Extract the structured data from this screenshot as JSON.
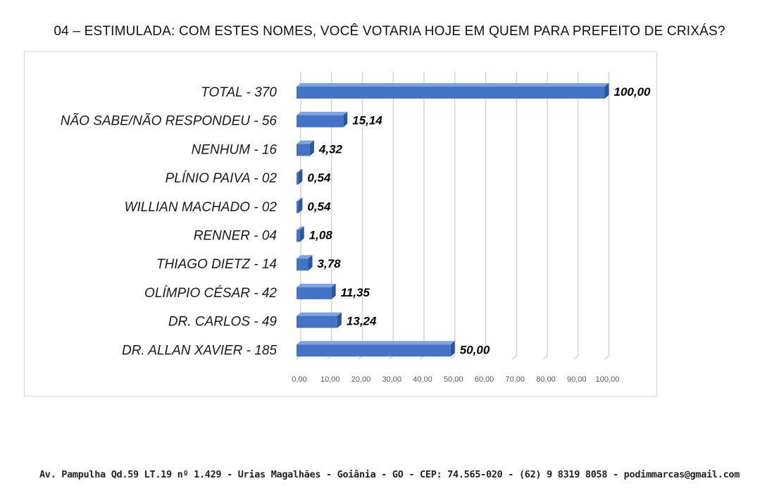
{
  "title": "04 – ESTIMULADA: COM ESTES NOMES, VOCÊ VOTARIA HOJE EM QUEM PARA PREFEITO DE CRIXÁS?",
  "footer": "Av. Pampulha Qd.59 LT.19 nº 1.429 - Urias Magalhães - Goiânia - GO - CEP: 74.565-020 - (62) 9 8319 8058 - podimmarcas@gmail.com",
  "chart_data": {
    "type": "bar",
    "orientation": "horizontal",
    "title": "",
    "xlabel": "",
    "ylabel": "",
    "xlim": [
      0,
      100
    ],
    "grid": true,
    "bar_color": "#4472C4",
    "categories": [
      "TOTAL - 370",
      "NÃO SABE/NÃO RESPONDEU - 56",
      "NENHUM - 16",
      "PLÍNIO PAIVA - 02",
      "WILLIAN MACHADO - 02",
      "RENNER - 04",
      "THIAGO DIETZ - 14",
      "OLÍMPIO CÉSAR - 42",
      "DR. CARLOS - 49",
      "DR. ALLAN XAVIER - 185"
    ],
    "values": [
      100.0,
      15.14,
      4.32,
      0.54,
      0.54,
      1.08,
      3.78,
      11.35,
      13.24,
      50.0
    ],
    "value_labels": [
      "100,00",
      "15,14",
      "4,32",
      "0,54",
      "0,54",
      "1,08",
      "3,78",
      "11,35",
      "13,24",
      "50,00"
    ],
    "x_ticks": [
      "0,00",
      "10,00",
      "20,00",
      "30,00",
      "40,00",
      "50,00",
      "60,00",
      "70,00",
      "80,00",
      "90,00",
      "100,00"
    ]
  }
}
